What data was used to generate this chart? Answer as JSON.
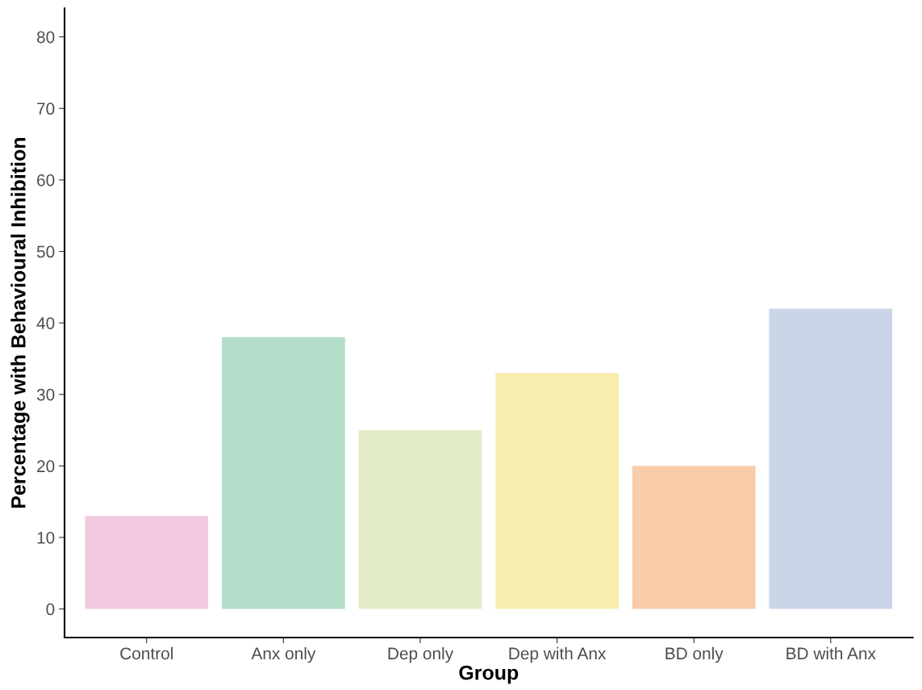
{
  "chart_data": {
    "type": "bar",
    "xlabel": "Group",
    "ylabel": "Percentage with Behavioural Inhibition",
    "categories": [
      "Control",
      "Anx only",
      "Dep only",
      "Dep with Anx",
      "BD only",
      "BD with Anx"
    ],
    "values": [
      13,
      38,
      25,
      33,
      20,
      42
    ],
    "colors": [
      "#f1c9de",
      "#b2ddc9",
      "#e2edc8",
      "#f7eeae",
      "#f8cba9",
      "#cad5e7"
    ],
    "ylim": [
      -4,
      84
    ],
    "yticks": [
      0,
      10,
      20,
      30,
      40,
      50,
      60,
      70,
      80
    ],
    "grid": false,
    "legend": false
  }
}
